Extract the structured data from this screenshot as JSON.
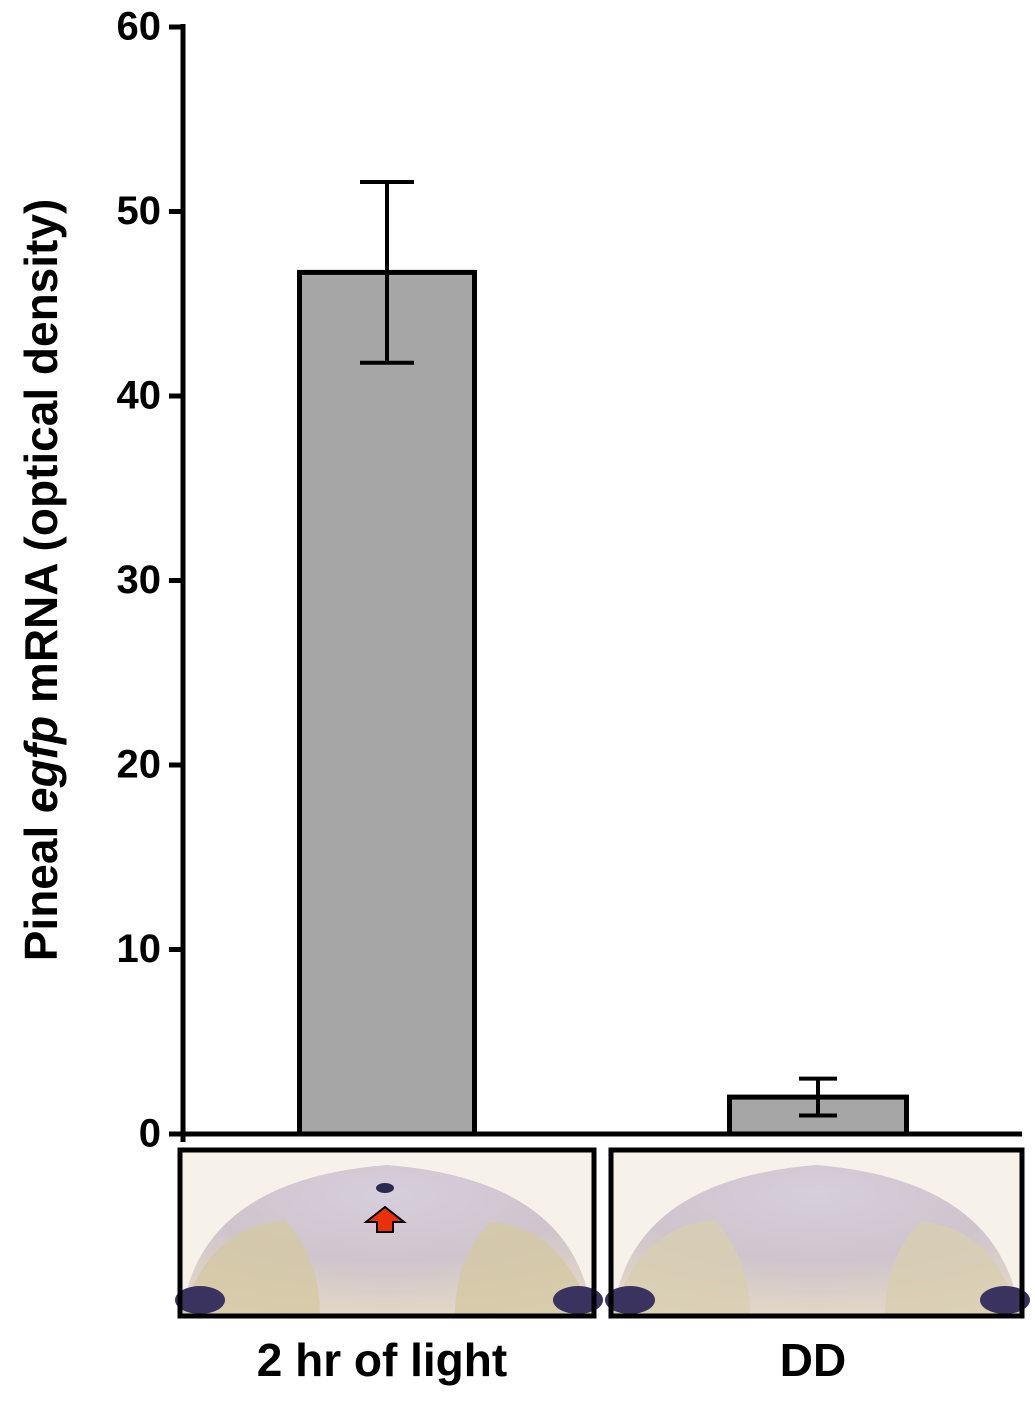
{
  "chart_data": {
    "type": "bar",
    "y_label_parts": [
      "Pineal ",
      "egfp",
      " mRNA (optical density)"
    ],
    "categories": [
      "2 hr of light",
      "DD"
    ],
    "values": [
      46.7,
      2.0
    ],
    "errors": [
      4.9,
      1.0
    ],
    "color": "#a6a6a6",
    "ylim": [
      0,
      60
    ],
    "yticks": [
      0,
      10,
      20,
      30,
      40,
      50,
      60
    ],
    "grid": false
  }
}
